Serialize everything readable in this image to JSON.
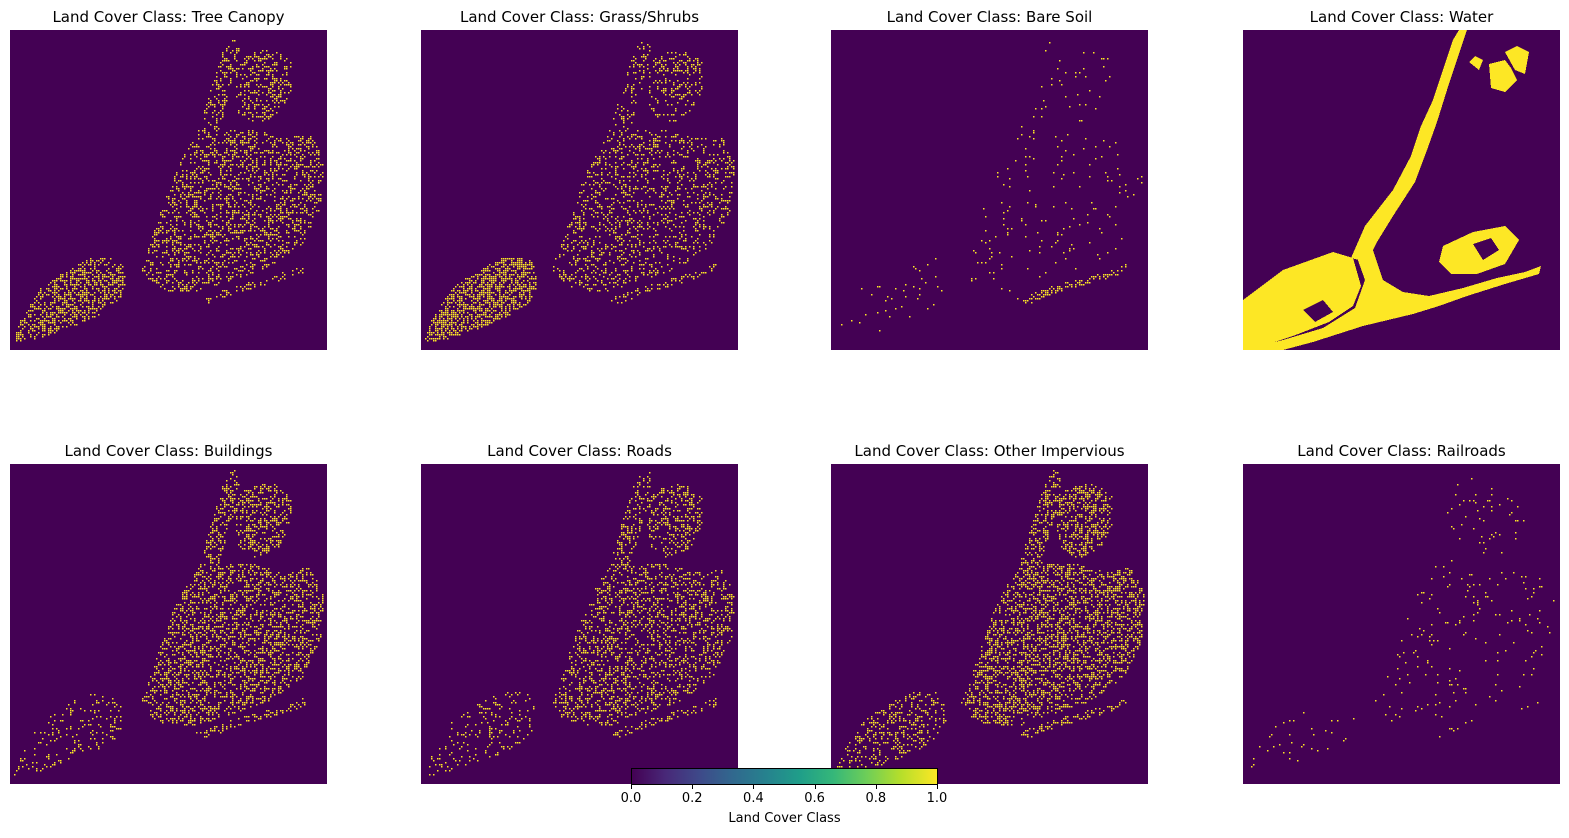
{
  "chart_data": {
    "type": "heatmap",
    "colormap": "viridis",
    "colors": {
      "zero": "#440154",
      "one": "#fde725"
    },
    "panels": [
      {
        "title": "Land Cover Class: Tree Canopy",
        "class": "tree-canopy",
        "density": 0.3
      },
      {
        "title": "Land Cover Class: Grass/Shrubs",
        "class": "grass-shrubs",
        "density": 0.22
      },
      {
        "title": "Land Cover Class: Bare Soil",
        "class": "bare-soil",
        "density": 0.03
      },
      {
        "title": "Land Cover Class: Water",
        "class": "water",
        "density": 1.0
      },
      {
        "title": "Land Cover Class: Buildings",
        "class": "buildings",
        "density": 0.35
      },
      {
        "title": "Land Cover Class: Roads",
        "class": "roads",
        "density": 0.3
      },
      {
        "title": "Land Cover Class: Other Impervious",
        "class": "other-impervious",
        "density": 0.4
      },
      {
        "title": "Land Cover Class: Railroads",
        "class": "railroads",
        "density": 0.03
      }
    ],
    "colorbar": {
      "label": "Land Cover Class",
      "ticks": [
        "0.0",
        "0.2",
        "0.4",
        "0.6",
        "0.8",
        "1.0"
      ],
      "range": [
        0.0,
        1.0
      ]
    }
  }
}
